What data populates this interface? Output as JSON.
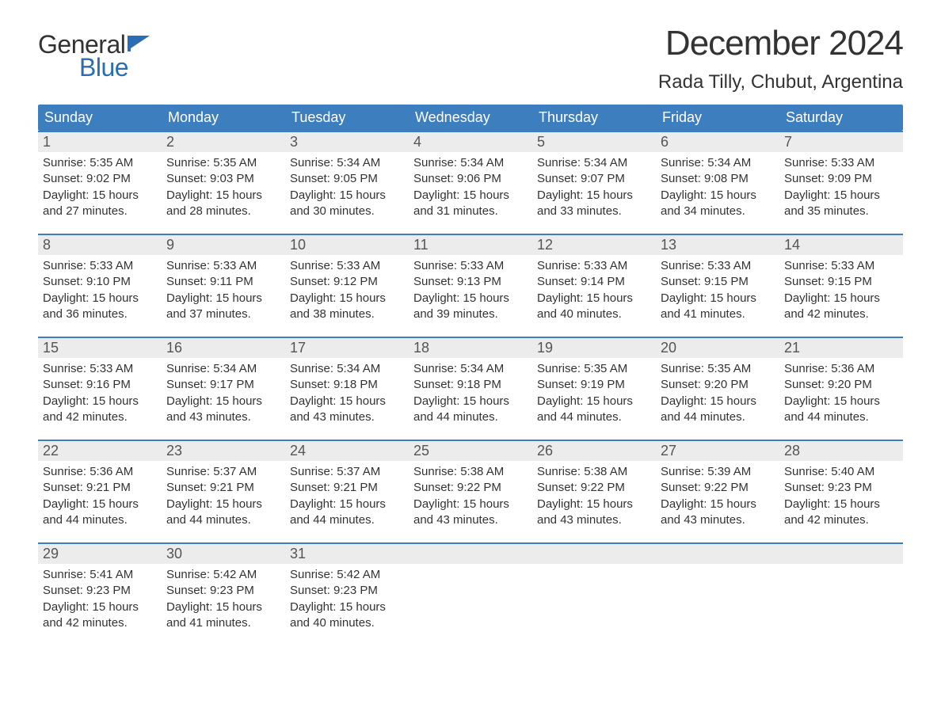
{
  "logo": {
    "text_general": "General",
    "text_blue": "Blue",
    "flag_color": "#2a6db5"
  },
  "title": "December 2024",
  "location": "Rada Tilly, Chubut, Argentina",
  "colors": {
    "header_bg": "#3d7ebf",
    "day_number_bg": "#ececec",
    "week_border": "#3d7ebf",
    "text": "#333333",
    "background": "#ffffff"
  },
  "weekdays": [
    "Sunday",
    "Monday",
    "Tuesday",
    "Wednesday",
    "Thursday",
    "Friday",
    "Saturday"
  ],
  "weeks": [
    [
      {
        "day": "1",
        "sunrise": "Sunrise: 5:35 AM",
        "sunset": "Sunset: 9:02 PM",
        "daylight1": "Daylight: 15 hours",
        "daylight2": "and 27 minutes."
      },
      {
        "day": "2",
        "sunrise": "Sunrise: 5:35 AM",
        "sunset": "Sunset: 9:03 PM",
        "daylight1": "Daylight: 15 hours",
        "daylight2": "and 28 minutes."
      },
      {
        "day": "3",
        "sunrise": "Sunrise: 5:34 AM",
        "sunset": "Sunset: 9:05 PM",
        "daylight1": "Daylight: 15 hours",
        "daylight2": "and 30 minutes."
      },
      {
        "day": "4",
        "sunrise": "Sunrise: 5:34 AM",
        "sunset": "Sunset: 9:06 PM",
        "daylight1": "Daylight: 15 hours",
        "daylight2": "and 31 minutes."
      },
      {
        "day": "5",
        "sunrise": "Sunrise: 5:34 AM",
        "sunset": "Sunset: 9:07 PM",
        "daylight1": "Daylight: 15 hours",
        "daylight2": "and 33 minutes."
      },
      {
        "day": "6",
        "sunrise": "Sunrise: 5:34 AM",
        "sunset": "Sunset: 9:08 PM",
        "daylight1": "Daylight: 15 hours",
        "daylight2": "and 34 minutes."
      },
      {
        "day": "7",
        "sunrise": "Sunrise: 5:33 AM",
        "sunset": "Sunset: 9:09 PM",
        "daylight1": "Daylight: 15 hours",
        "daylight2": "and 35 minutes."
      }
    ],
    [
      {
        "day": "8",
        "sunrise": "Sunrise: 5:33 AM",
        "sunset": "Sunset: 9:10 PM",
        "daylight1": "Daylight: 15 hours",
        "daylight2": "and 36 minutes."
      },
      {
        "day": "9",
        "sunrise": "Sunrise: 5:33 AM",
        "sunset": "Sunset: 9:11 PM",
        "daylight1": "Daylight: 15 hours",
        "daylight2": "and 37 minutes."
      },
      {
        "day": "10",
        "sunrise": "Sunrise: 5:33 AM",
        "sunset": "Sunset: 9:12 PM",
        "daylight1": "Daylight: 15 hours",
        "daylight2": "and 38 minutes."
      },
      {
        "day": "11",
        "sunrise": "Sunrise: 5:33 AM",
        "sunset": "Sunset: 9:13 PM",
        "daylight1": "Daylight: 15 hours",
        "daylight2": "and 39 minutes."
      },
      {
        "day": "12",
        "sunrise": "Sunrise: 5:33 AM",
        "sunset": "Sunset: 9:14 PM",
        "daylight1": "Daylight: 15 hours",
        "daylight2": "and 40 minutes."
      },
      {
        "day": "13",
        "sunrise": "Sunrise: 5:33 AM",
        "sunset": "Sunset: 9:15 PM",
        "daylight1": "Daylight: 15 hours",
        "daylight2": "and 41 minutes."
      },
      {
        "day": "14",
        "sunrise": "Sunrise: 5:33 AM",
        "sunset": "Sunset: 9:15 PM",
        "daylight1": "Daylight: 15 hours",
        "daylight2": "and 42 minutes."
      }
    ],
    [
      {
        "day": "15",
        "sunrise": "Sunrise: 5:33 AM",
        "sunset": "Sunset: 9:16 PM",
        "daylight1": "Daylight: 15 hours",
        "daylight2": "and 42 minutes."
      },
      {
        "day": "16",
        "sunrise": "Sunrise: 5:34 AM",
        "sunset": "Sunset: 9:17 PM",
        "daylight1": "Daylight: 15 hours",
        "daylight2": "and 43 minutes."
      },
      {
        "day": "17",
        "sunrise": "Sunrise: 5:34 AM",
        "sunset": "Sunset: 9:18 PM",
        "daylight1": "Daylight: 15 hours",
        "daylight2": "and 43 minutes."
      },
      {
        "day": "18",
        "sunrise": "Sunrise: 5:34 AM",
        "sunset": "Sunset: 9:18 PM",
        "daylight1": "Daylight: 15 hours",
        "daylight2": "and 44 minutes."
      },
      {
        "day": "19",
        "sunrise": "Sunrise: 5:35 AM",
        "sunset": "Sunset: 9:19 PM",
        "daylight1": "Daylight: 15 hours",
        "daylight2": "and 44 minutes."
      },
      {
        "day": "20",
        "sunrise": "Sunrise: 5:35 AM",
        "sunset": "Sunset: 9:20 PM",
        "daylight1": "Daylight: 15 hours",
        "daylight2": "and 44 minutes."
      },
      {
        "day": "21",
        "sunrise": "Sunrise: 5:36 AM",
        "sunset": "Sunset: 9:20 PM",
        "daylight1": "Daylight: 15 hours",
        "daylight2": "and 44 minutes."
      }
    ],
    [
      {
        "day": "22",
        "sunrise": "Sunrise: 5:36 AM",
        "sunset": "Sunset: 9:21 PM",
        "daylight1": "Daylight: 15 hours",
        "daylight2": "and 44 minutes."
      },
      {
        "day": "23",
        "sunrise": "Sunrise: 5:37 AM",
        "sunset": "Sunset: 9:21 PM",
        "daylight1": "Daylight: 15 hours",
        "daylight2": "and 44 minutes."
      },
      {
        "day": "24",
        "sunrise": "Sunrise: 5:37 AM",
        "sunset": "Sunset: 9:21 PM",
        "daylight1": "Daylight: 15 hours",
        "daylight2": "and 44 minutes."
      },
      {
        "day": "25",
        "sunrise": "Sunrise: 5:38 AM",
        "sunset": "Sunset: 9:22 PM",
        "daylight1": "Daylight: 15 hours",
        "daylight2": "and 43 minutes."
      },
      {
        "day": "26",
        "sunrise": "Sunrise: 5:38 AM",
        "sunset": "Sunset: 9:22 PM",
        "daylight1": "Daylight: 15 hours",
        "daylight2": "and 43 minutes."
      },
      {
        "day": "27",
        "sunrise": "Sunrise: 5:39 AM",
        "sunset": "Sunset: 9:22 PM",
        "daylight1": "Daylight: 15 hours",
        "daylight2": "and 43 minutes."
      },
      {
        "day": "28",
        "sunrise": "Sunrise: 5:40 AM",
        "sunset": "Sunset: 9:23 PM",
        "daylight1": "Daylight: 15 hours",
        "daylight2": "and 42 minutes."
      }
    ],
    [
      {
        "day": "29",
        "sunrise": "Sunrise: 5:41 AM",
        "sunset": "Sunset: 9:23 PM",
        "daylight1": "Daylight: 15 hours",
        "daylight2": "and 42 minutes."
      },
      {
        "day": "30",
        "sunrise": "Sunrise: 5:42 AM",
        "sunset": "Sunset: 9:23 PM",
        "daylight1": "Daylight: 15 hours",
        "daylight2": "and 41 minutes."
      },
      {
        "day": "31",
        "sunrise": "Sunrise: 5:42 AM",
        "sunset": "Sunset: 9:23 PM",
        "daylight1": "Daylight: 15 hours",
        "daylight2": "and 40 minutes."
      },
      {
        "empty": true
      },
      {
        "empty": true
      },
      {
        "empty": true
      },
      {
        "empty": true
      }
    ]
  ]
}
